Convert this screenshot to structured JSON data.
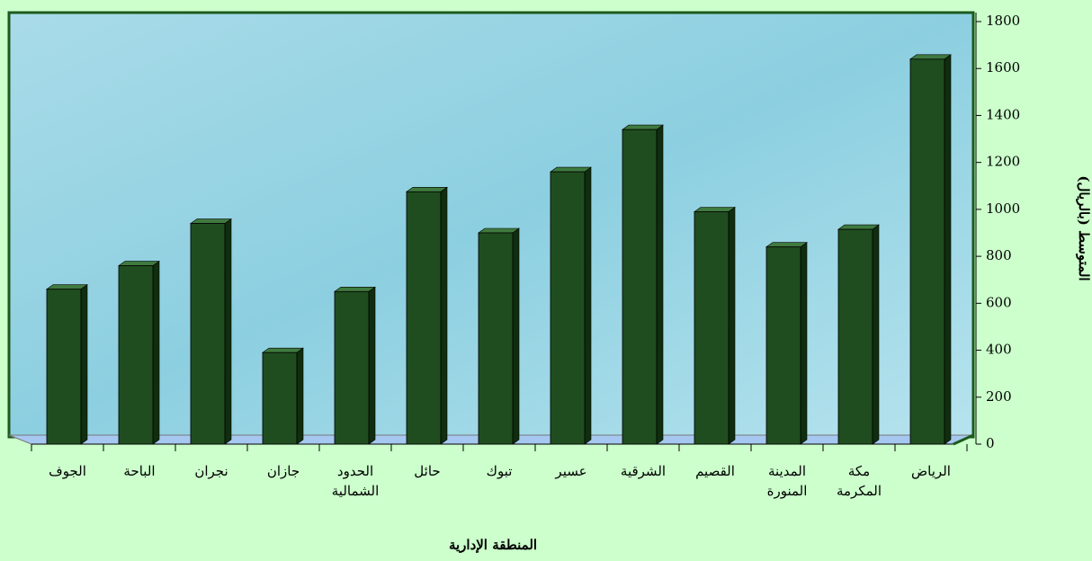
{
  "chart_data": {
    "type": "bar",
    "x_label": "المنطقة الإدارية",
    "y_label": "المتوسط (بالريال)",
    "categories": [
      "الجوف",
      "الباحة",
      "نجران",
      "جازان",
      "الحدود الشمالية",
      "حائل",
      "تبوك",
      "عسير",
      "الشرقية",
      "القصيم",
      "المدينة المنورة",
      "مكة المكرمة",
      "الرياض"
    ],
    "values": [
      660,
      760,
      940,
      390,
      650,
      1075,
      900,
      1160,
      1340,
      990,
      840,
      915,
      1640
    ],
    "color": "#1f4d1f",
    "ylim": [
      0,
      1800
    ],
    "yticks": [
      0,
      200,
      400,
      600,
      800,
      1000,
      1200,
      1400,
      1600,
      1800
    ]
  }
}
